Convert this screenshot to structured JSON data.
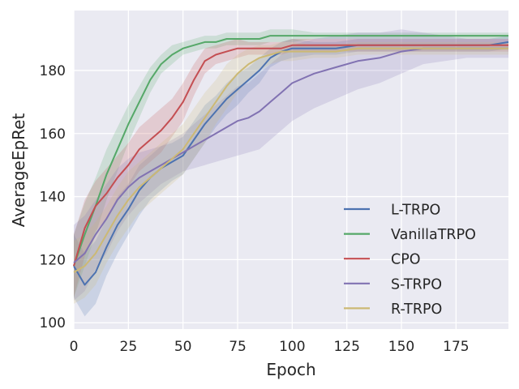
{
  "chart_data": {
    "type": "line",
    "xlabel": "Epoch",
    "ylabel": "AverageEpRet",
    "xlim": [
      0,
      199
    ],
    "ylim": [
      98,
      199
    ],
    "xticks": [
      0,
      25,
      50,
      75,
      100,
      125,
      150,
      175
    ],
    "yticks": [
      100,
      120,
      140,
      160,
      180
    ],
    "grid": true,
    "legend": "lower-right",
    "background": "#eaeaf2",
    "series": [
      {
        "name": "L-TRPO",
        "color": "#4c72b0",
        "x": [
          0,
          5,
          10,
          15,
          20,
          25,
          30,
          35,
          40,
          45,
          50,
          55,
          60,
          65,
          70,
          75,
          80,
          85,
          90,
          95,
          100,
          110,
          120,
          130,
          140,
          150,
          160,
          170,
          180,
          190,
          199
        ],
        "y": [
          118,
          112,
          116,
          124,
          131,
          136,
          142,
          146,
          149,
          151,
          153,
          158,
          163,
          167,
          171,
          174,
          177,
          180,
          184,
          186,
          187,
          187,
          187,
          188,
          188,
          188,
          188,
          188,
          188,
          188,
          189
        ],
        "band": [
          10,
          10,
          10,
          9,
          9,
          8,
          8,
          7,
          7,
          6,
          6,
          6,
          6,
          5,
          5,
          5,
          4,
          4,
          3,
          3,
          3,
          2,
          2,
          2,
          2,
          2,
          2,
          2,
          2,
          2,
          2
        ]
      },
      {
        "name": "VanillaTRPO",
        "color": "#55a868",
        "x": [
          0,
          5,
          10,
          15,
          20,
          25,
          30,
          35,
          40,
          45,
          50,
          55,
          60,
          65,
          70,
          75,
          80,
          85,
          90,
          95,
          100,
          110,
          120,
          130,
          140,
          150,
          160,
          170,
          180,
          190,
          199
        ],
        "y": [
          118,
          128,
          137,
          147,
          155,
          163,
          170,
          177,
          182,
          185,
          187,
          188,
          189,
          189,
          190,
          190,
          190,
          190,
          191,
          191,
          191,
          191,
          191,
          191,
          191,
          191,
          191,
          191,
          191,
          191,
          191
        ],
        "band": [
          10,
          10,
          9,
          8,
          7,
          6,
          5,
          4,
          3,
          3,
          2,
          2,
          2,
          2,
          2,
          2,
          2,
          2,
          2,
          2,
          2,
          1,
          1,
          1,
          1,
          1,
          1,
          1,
          1,
          1,
          1
        ]
      },
      {
        "name": "CPO",
        "color": "#c44e52",
        "x": [
          0,
          5,
          10,
          15,
          20,
          25,
          30,
          35,
          40,
          45,
          50,
          55,
          60,
          65,
          70,
          75,
          80,
          85,
          90,
          95,
          100,
          110,
          120,
          130,
          140,
          150,
          160,
          170,
          180,
          190,
          199
        ],
        "y": [
          118,
          130,
          137,
          141,
          146,
          150,
          155,
          158,
          161,
          165,
          170,
          177,
          183,
          185,
          186,
          187,
          187,
          187,
          187,
          187,
          188,
          188,
          188,
          188,
          188,
          188,
          188,
          188,
          188,
          188,
          188
        ],
        "band": [
          10,
          9,
          8,
          8,
          7,
          7,
          7,
          7,
          7,
          6,
          6,
          5,
          4,
          3,
          3,
          3,
          2,
          2,
          2,
          2,
          2,
          2,
          2,
          2,
          2,
          2,
          2,
          2,
          2,
          2,
          2
        ]
      },
      {
        "name": "S-TRPO",
        "color": "#8172b2",
        "x": [
          0,
          5,
          10,
          15,
          20,
          25,
          30,
          35,
          40,
          45,
          50,
          55,
          60,
          65,
          70,
          75,
          80,
          85,
          90,
          95,
          100,
          110,
          120,
          130,
          140,
          150,
          160,
          170,
          180,
          190,
          199
        ],
        "y": [
          119,
          122,
          128,
          133,
          139,
          143,
          146,
          148,
          150,
          152,
          154,
          156,
          158,
          160,
          162,
          164,
          165,
          167,
          170,
          173,
          176,
          179,
          181,
          183,
          184,
          186,
          187,
          187,
          187,
          187,
          187
        ],
        "band": [
          12,
          12,
          11,
          11,
          10,
          9,
          8,
          7,
          6,
          6,
          6,
          7,
          8,
          9,
          10,
          11,
          11,
          12,
          12,
          12,
          12,
          11,
          10,
          9,
          8,
          7,
          5,
          4,
          3,
          3,
          3
        ]
      },
      {
        "name": "R-TRPO",
        "color": "#ccb974",
        "x": [
          0,
          5,
          10,
          15,
          20,
          25,
          30,
          35,
          40,
          45,
          50,
          55,
          60,
          65,
          70,
          75,
          80,
          85,
          90,
          95,
          100,
          110,
          120,
          130,
          140,
          150,
          160,
          170,
          180,
          190,
          199
        ],
        "y": [
          116,
          118,
          122,
          128,
          134,
          139,
          143,
          146,
          149,
          152,
          155,
          160,
          165,
          170,
          175,
          179,
          182,
          184,
          185,
          186,
          186,
          186,
          186,
          187,
          187,
          187,
          187,
          187,
          187,
          187,
          187
        ],
        "band": [
          10,
          10,
          10,
          9,
          9,
          9,
          8,
          8,
          8,
          8,
          8,
          8,
          8,
          7,
          7,
          6,
          5,
          4,
          3,
          3,
          3,
          2,
          2,
          2,
          2,
          2,
          2,
          2,
          2,
          2,
          2
        ]
      }
    ]
  }
}
